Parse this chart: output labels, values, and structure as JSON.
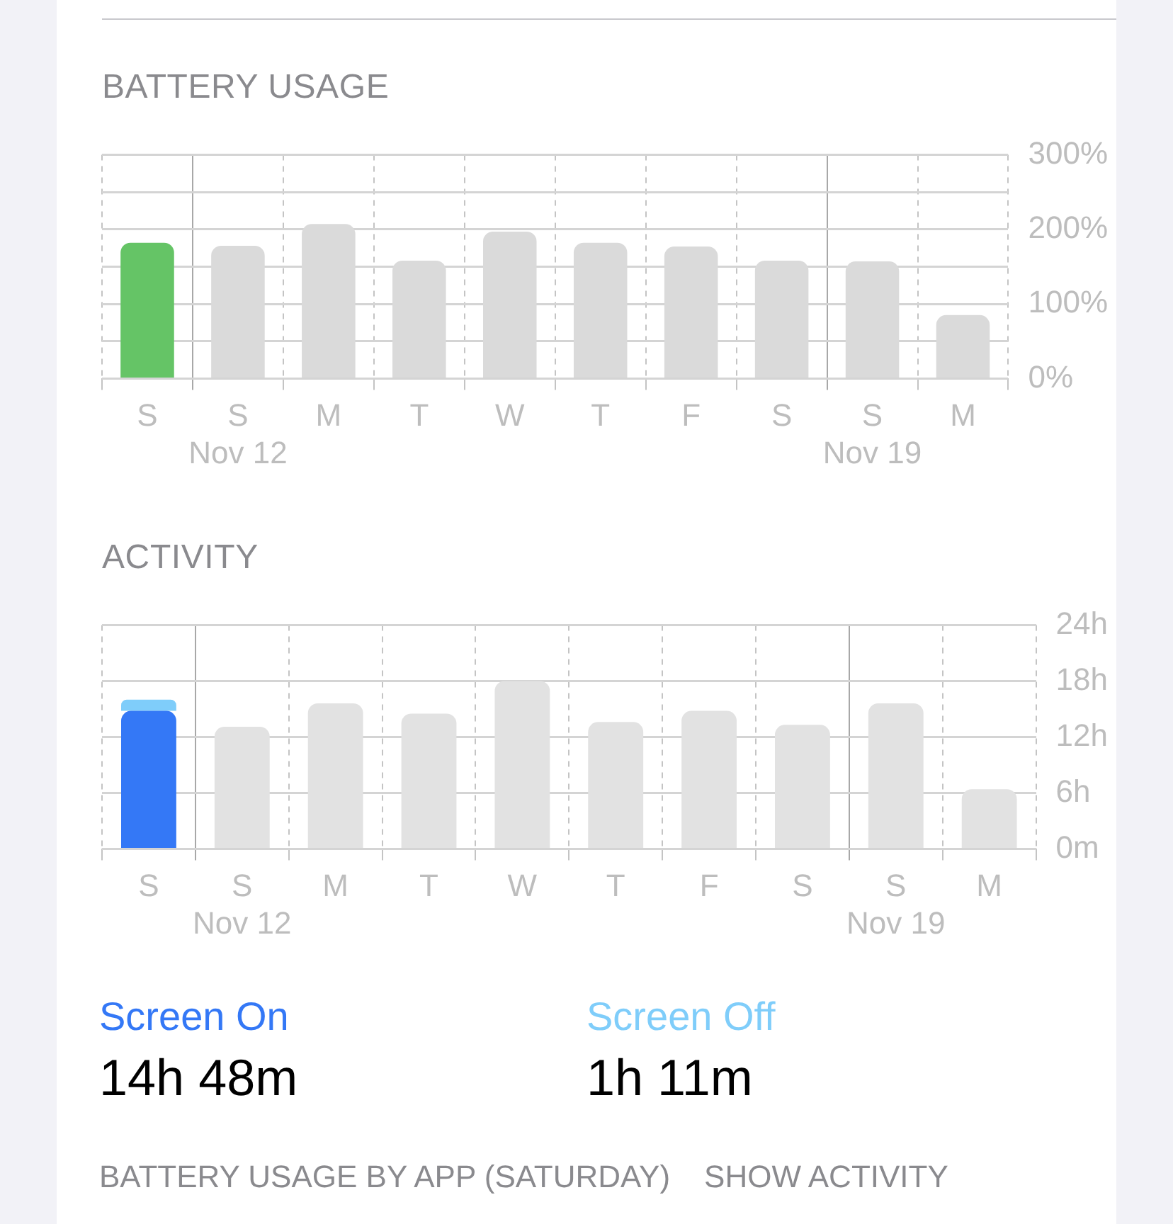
{
  "chart_data": [
    {
      "type": "bar",
      "title": "BATTERY USAGE",
      "categories": [
        "S",
        "S\nNov 12",
        "M",
        "T",
        "W",
        "T",
        "F",
        "S",
        "S\nNov 19",
        "M"
      ],
      "values": [
        182,
        178,
        207,
        158,
        197,
        182,
        177,
        158,
        157,
        85
      ],
      "colors": [
        "#65c466",
        "#dadada",
        "#dadada",
        "#dadada",
        "#dadada",
        "#dadada",
        "#dadada",
        "#dadada",
        "#dadada",
        "#dadada"
      ],
      "ylim": [
        0,
        300
      ],
      "yticks": [
        {
          "value": 0,
          "label": "0%"
        },
        {
          "value": 50,
          "label": null
        },
        {
          "value": 100,
          "label": "100%"
        },
        {
          "value": 150,
          "label": null
        },
        {
          "value": 200,
          "label": "200%"
        },
        {
          "value": 250,
          "label": null
        },
        {
          "value": 300,
          "label": "300%"
        }
      ],
      "grid": true
    },
    {
      "type": "bar",
      "title": "ACTIVITY",
      "categories": [
        "S",
        "S\nNov 12",
        "M",
        "T",
        "W",
        "T",
        "F",
        "S",
        "S\nNov 19",
        "M"
      ],
      "stacked": true,
      "series": [
        {
          "name": "Screen On",
          "color": "#3478f6",
          "colors": [
            "#3478f6",
            "#e2e2e2",
            "#e2e2e2",
            "#e2e2e2",
            "#e2e2e2",
            "#e2e2e2",
            "#e2e2e2",
            "#e2e2e2",
            "#e2e2e2",
            "#e2e2e2"
          ],
          "values": [
            14.8,
            13.1,
            15.6,
            14.5,
            18,
            13.6,
            14.8,
            13.3,
            15.6,
            6.4
          ]
        },
        {
          "name": "Screen Off",
          "color": "#7fcdfa",
          "values": [
            1.2,
            null,
            null,
            null,
            null,
            null,
            null,
            null,
            null,
            null
          ]
        }
      ],
      "ylim": [
        0,
        24
      ],
      "yticks": [
        {
          "value": 0,
          "label": "0m"
        },
        {
          "value": 6,
          "label": "6h"
        },
        {
          "value": 12,
          "label": "12h"
        },
        {
          "value": 18,
          "label": "18h"
        },
        {
          "value": 24,
          "label": "24h"
        }
      ],
      "grid": true,
      "legend": "bottom",
      "annotations": [
        "14h 48m",
        "1h 11m",
        "BATTERY USAGE BY APP (SATURDAY)",
        "SHOW ACTIVITY"
      ]
    }
  ]
}
